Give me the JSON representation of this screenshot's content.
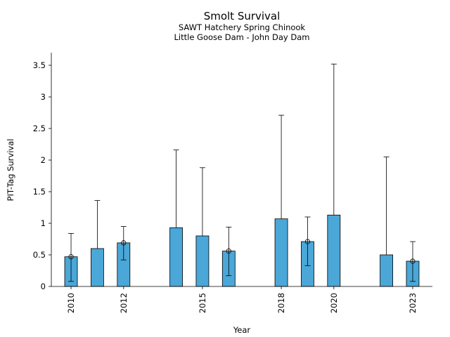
{
  "chart_data": {
    "type": "bar",
    "title": "Smolt Survival",
    "subtitle_lines": [
      "SAWT Hatchery Spring Chinook",
      "Little Goose Dam - John Day Dam"
    ],
    "xlabel": "Year",
    "ylabel": "PIT-Tag Survival",
    "ylim": [
      0,
      3.7
    ],
    "xlim": [
      2009.25,
      2023.75
    ],
    "yticks": [
      0,
      0.5,
      1,
      1.5,
      2,
      2.5,
      3,
      3.5
    ],
    "ytick_labels": [
      "0",
      "0.5",
      "1",
      "1.5",
      "2",
      "2.5",
      "3",
      "3.5"
    ],
    "xticks": [
      2010,
      2012,
      2015,
      2018,
      2020,
      2023
    ],
    "xtick_labels": [
      "2010",
      "2012",
      "2015",
      "2018",
      "2020",
      "2023"
    ],
    "bar_color": "#4aa7d8",
    "grid": false,
    "series": [
      {
        "points": [
          {
            "x": 2010,
            "y": 0.47,
            "lower": 0.08,
            "upper": 0.84,
            "marker": true
          },
          {
            "x": 2011,
            "y": 0.6,
            "lower": null,
            "upper": 1.36,
            "marker": false
          },
          {
            "x": 2012,
            "y": 0.69,
            "lower": 0.42,
            "upper": 0.95,
            "marker": true
          },
          {
            "x": 2014,
            "y": 0.93,
            "lower": null,
            "upper": 2.16,
            "marker": false
          },
          {
            "x": 2015,
            "y": 0.8,
            "lower": null,
            "upper": 1.88,
            "marker": false
          },
          {
            "x": 2016,
            "y": 0.56,
            "lower": 0.17,
            "upper": 0.94,
            "marker": true
          },
          {
            "x": 2018,
            "y": 1.07,
            "lower": null,
            "upper": 2.71,
            "marker": false
          },
          {
            "x": 2019,
            "y": 0.71,
            "lower": 0.33,
            "upper": 1.1,
            "marker": true
          },
          {
            "x": 2020,
            "y": 1.13,
            "lower": null,
            "upper": 3.52,
            "marker": false
          },
          {
            "x": 2022,
            "y": 0.5,
            "lower": null,
            "upper": 2.05,
            "marker": false
          },
          {
            "x": 2023,
            "y": 0.4,
            "lower": 0.08,
            "upper": 0.71,
            "marker": true
          }
        ]
      }
    ]
  }
}
